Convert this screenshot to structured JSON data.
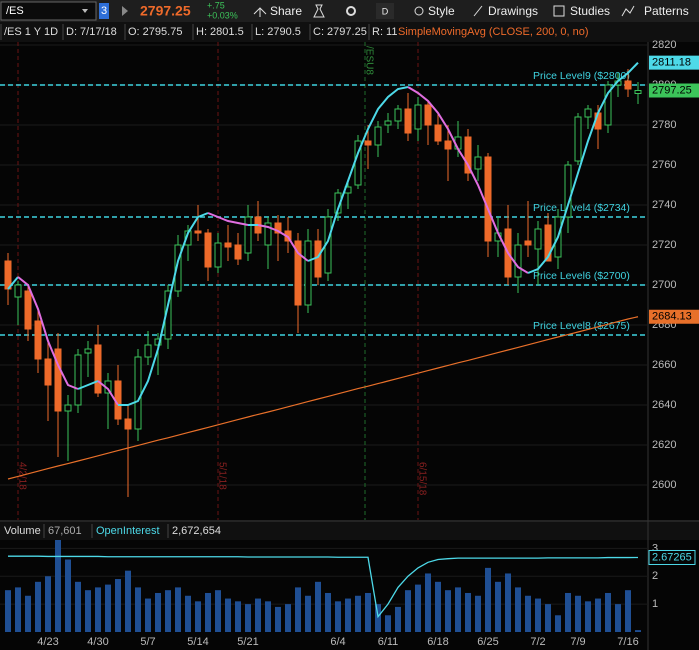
{
  "toolbar": {
    "symbol": "/ES",
    "badge": "3",
    "last": "2797.25",
    "change": "+.75",
    "change_pct": "+0.03%",
    "buttons": [
      "Share",
      "D",
      "Style",
      "Drawings",
      "Studies",
      "Patterns"
    ]
  },
  "info_bar": {
    "items": [
      "/ES 1 Y 1D",
      "D: 7/17/18",
      "O: 2795.75",
      "H: 2801.5",
      "L: 2790.5",
      "C: 2797.25",
      "R: 11"
    ],
    "study": "SimpleMovingAvg (CLOSE, 200, 0, no)"
  },
  "price_chart": {
    "type": "candlestick",
    "ylim": [
      2582.5,
      2821.5
    ],
    "yticks": [
      2600,
      2620,
      2640,
      2660,
      2680,
      2700,
      2720,
      2740,
      2760,
      2780,
      2800,
      2820
    ],
    "up_color": "#3cc45a",
    "down_color": "#ee6a2a",
    "categories": [
      null,
      null,
      null,
      null,
      "4/23",
      null,
      null,
      null,
      null,
      "4/30",
      null,
      null,
      null,
      null,
      "5/7",
      null,
      null,
      null,
      null,
      "5/14",
      null,
      null,
      null,
      null,
      "5/21",
      null,
      null,
      null,
      null,
      null,
      null,
      null,
      null,
      "6/4",
      null,
      null,
      null,
      null,
      "6/11",
      null,
      null,
      null,
      null,
      "6/18",
      null,
      null,
      null,
      null,
      "6/25",
      null,
      null,
      null,
      null,
      "7/2",
      null,
      null,
      null,
      "7/9",
      null,
      null,
      null,
      null,
      "7/16",
      null
    ],
    "ohlc": [
      [
        2712,
        2716,
        2690,
        2698
      ],
      [
        2694,
        2702,
        2680,
        2700
      ],
      [
        2697,
        2700,
        2672,
        2678
      ],
      [
        2682,
        2688,
        2656,
        2663
      ],
      [
        2663,
        2673,
        2632,
        2650
      ],
      [
        2668,
        2676,
        2614,
        2637
      ],
      [
        2637,
        2645,
        2612,
        2640
      ],
      [
        2640,
        2668,
        2636,
        2665
      ],
      [
        2666,
        2672,
        2654,
        2668
      ],
      [
        2670,
        2680,
        2644,
        2646
      ],
      [
        2646,
        2656,
        2628,
        2652
      ],
      [
        2652,
        2660,
        2630,
        2633
      ],
      [
        2633,
        2640,
        2594,
        2628
      ],
      [
        2628,
        2668,
        2622,
        2664
      ],
      [
        2664,
        2677,
        2660,
        2670
      ],
      [
        2670,
        2676,
        2655,
        2673
      ],
      [
        2673,
        2700,
        2668,
        2697
      ],
      [
        2697,
        2725,
        2694,
        2720
      ],
      [
        2720,
        2730,
        2712,
        2727
      ],
      [
        2727,
        2740,
        2722,
        2726
      ],
      [
        2726,
        2728,
        2702,
        2709
      ],
      [
        2709,
        2726,
        2706,
        2721
      ],
      [
        2721,
        2730,
        2712,
        2719
      ],
      [
        2720,
        2726,
        2710,
        2713
      ],
      [
        2716,
        2740,
        2712,
        2734
      ],
      [
        2734,
        2742,
        2722,
        2726
      ],
      [
        2720,
        2734,
        2708,
        2731
      ],
      [
        2731,
        2735,
        2712,
        2726
      ],
      [
        2727,
        2734,
        2716,
        2722
      ],
      [
        2722,
        2726,
        2676,
        2690
      ],
      [
        2690,
        2728,
        2686,
        2722
      ],
      [
        2722,
        2728,
        2700,
        2704
      ],
      [
        2706,
        2738,
        2702,
        2734
      ],
      [
        2736,
        2748,
        2732,
        2746
      ],
      [
        2746,
        2752,
        2738,
        2749
      ],
      [
        2750,
        2775,
        2748,
        2772
      ],
      [
        2772,
        2780,
        2758,
        2770
      ],
      [
        2770,
        2782,
        2764,
        2779
      ],
      [
        2780,
        2786,
        2776,
        2782
      ],
      [
        2782,
        2790,
        2778,
        2788
      ],
      [
        2788,
        2796,
        2772,
        2776
      ],
      [
        2778,
        2794,
        2772,
        2790
      ],
      [
        2790,
        2792,
        2770,
        2780
      ],
      [
        2780,
        2786,
        2770,
        2772
      ],
      [
        2772,
        2780,
        2752,
        2768
      ],
      [
        2768,
        2782,
        2764,
        2774
      ],
      [
        2774,
        2778,
        2752,
        2756
      ],
      [
        2758,
        2770,
        2752,
        2764
      ],
      [
        2764,
        2766,
        2714,
        2722
      ],
      [
        2722,
        2734,
        2714,
        2726
      ],
      [
        2728,
        2740,
        2700,
        2704
      ],
      [
        2704,
        2726,
        2696,
        2720
      ],
      [
        2722,
        2742,
        2714,
        2720
      ],
      [
        2718,
        2732,
        2700,
        2728
      ],
      [
        2730,
        2736,
        2712,
        2712
      ],
      [
        2714,
        2738,
        2708,
        2734
      ],
      [
        2734,
        2762,
        2726,
        2760
      ],
      [
        2762,
        2786,
        2760,
        2784
      ],
      [
        2784,
        2790,
        2778,
        2788
      ],
      [
        2786,
        2790,
        2768,
        2778
      ],
      [
        2780,
        2802,
        2776,
        2800
      ],
      [
        2800,
        2806,
        2794,
        2802
      ],
      [
        2802,
        2808,
        2794,
        2798
      ],
      [
        2795.75,
        2801.5,
        2790.5,
        2797.25
      ]
    ],
    "sma200": {
      "color": "#e8702a",
      "values": [
        2603,
        2604.3,
        2605.6,
        2606.9,
        2608.2,
        2609.5,
        2610.7,
        2612,
        2613.3,
        2614.6,
        2615.9,
        2617.2,
        2618.5,
        2619.8,
        2621.1,
        2622.4,
        2623.6,
        2624.9,
        2626.2,
        2627.5,
        2628.8,
        2630.1,
        2631.4,
        2632.7,
        2634,
        2635.3,
        2636.5,
        2637.8,
        2639.1,
        2640.4,
        2641.7,
        2643,
        2644.3,
        2645.6,
        2646.9,
        2648.2,
        2649.4,
        2650.7,
        2652,
        2653.3,
        2654.6,
        2655.9,
        2657.2,
        2658.5,
        2659.8,
        2661.1,
        2662.3,
        2663.6,
        2664.9,
        2666.2,
        2667.5,
        2668.8,
        2670.1,
        2671.4,
        2672.7,
        2674,
        2675.2,
        2676.5,
        2677.8,
        2679.1,
        2680.4,
        2681.7,
        2683,
        2684.13
      ]
    },
    "trend": {
      "up_color": "#4dd9e8",
      "down_color": "#e06ee0",
      "values": [
        2698,
        2704,
        2700,
        2688,
        2672,
        2660,
        2650,
        2648,
        2650,
        2652,
        2648,
        2640,
        2640,
        2642,
        2652,
        2668,
        2690,
        2712,
        2726,
        2734,
        2736,
        2734,
        2732,
        2731,
        2730,
        2730,
        2729,
        2727,
        2724,
        2716,
        2712,
        2714,
        2722,
        2738,
        2752,
        2766,
        2778,
        2788,
        2794,
        2798,
        2799,
        2796,
        2792,
        2786,
        2778,
        2768,
        2760,
        2750,
        2738,
        2726,
        2716,
        2709,
        2706,
        2708,
        2714,
        2724,
        2740,
        2756,
        2772,
        2786,
        2796,
        2802,
        2806,
        2811.18
      ]
    },
    "levels": [
      {
        "value": 2800,
        "label": "Price Level9 ($2800)"
      },
      {
        "value": 2734,
        "label": "Price Level4 ($2734)"
      },
      {
        "value": 2700,
        "label": "Price Level6 ($2700)"
      },
      {
        "value": 2675,
        "label": "Price Level8 ($2675)"
      }
    ],
    "level_color": "#3fd3e0",
    "tags": [
      {
        "value": 2811.18,
        "color": "#4dd9e8"
      },
      {
        "value": 2797.25,
        "color": "#3cc45a"
      },
      {
        "value": 2684.13,
        "color": "#e8702a"
      }
    ],
    "markers": [
      "4/2/18",
      "5/1/18",
      "6/15/18"
    ],
    "contract_marker": "/ESU8"
  },
  "volume_panel": {
    "labels": [
      "Volume",
      "67,601",
      "OpenInterest",
      "2,672,654"
    ],
    "ylim": [
      0,
      3.3
    ],
    "yticks": [
      1,
      2,
      3
    ],
    "bar_color": "#1f4f94",
    "oi_color": "#4dd9e8",
    "volume": [
      1.5,
      1.6,
      1.3,
      1.8,
      2.0,
      3.3,
      2.6,
      1.8,
      1.5,
      1.6,
      1.7,
      1.9,
      2.2,
      1.6,
      1.2,
      1.4,
      1.5,
      1.6,
      1.3,
      1.1,
      1.4,
      1.5,
      1.2,
      1.1,
      1.0,
      1.2,
      1.1,
      0.9,
      1.0,
      1.6,
      1.3,
      1.8,
      1.4,
      1.1,
      1.2,
      1.3,
      1.4,
      1.0,
      0.6,
      0.9,
      1.5,
      1.7,
      2.1,
      1.8,
      1.5,
      1.6,
      1.4,
      1.3,
      2.3,
      1.8,
      2.1,
      1.6,
      1.3,
      1.2,
      1.0,
      0.6,
      1.4,
      1.3,
      1.1,
      1.2,
      1.4,
      1.0,
      1.5,
      0.067601
    ],
    "open_interest": [
      2.72,
      2.72,
      2.72,
      2.72,
      2.71,
      2.71,
      2.71,
      2.71,
      2.71,
      2.71,
      2.7,
      2.7,
      2.7,
      2.7,
      2.7,
      2.7,
      2.7,
      2.7,
      2.7,
      2.7,
      2.7,
      2.7,
      2.7,
      2.7,
      2.69,
      2.69,
      2.69,
      2.69,
      2.69,
      2.69,
      2.69,
      2.69,
      2.69,
      2.68,
      2.68,
      2.68,
      2.68,
      0.55,
      1.0,
      1.6,
      2.0,
      2.3,
      2.5,
      2.6,
      2.63,
      2.65,
      2.65,
      2.65,
      2.65,
      2.65,
      2.65,
      2.65,
      2.65,
      2.65,
      2.66,
      2.66,
      2.66,
      2.66,
      2.66,
      2.66,
      2.67,
      2.67,
      2.67,
      2.672654
    ],
    "oi_tag": 2.67265
  }
}
